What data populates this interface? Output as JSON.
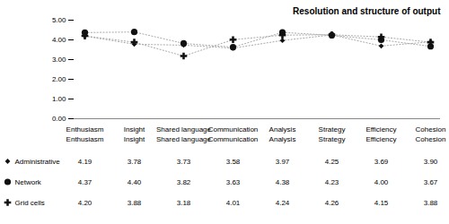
{
  "chart_data": {
    "type": "line",
    "title": "Resolution and structure of output",
    "categories": [
      "Enthusiasm",
      "Insight",
      "Shared language",
      "Communication",
      "Analysis",
      "Strategy",
      "Efficiency",
      "Cohesion"
    ],
    "series": [
      {
        "name": "Administrative",
        "color": "#111111",
        "marker": "diamond",
        "line_style": "dotted",
        "values": [
          4.19,
          3.78,
          3.73,
          3.58,
          3.97,
          4.25,
          3.69,
          3.9
        ],
        "value_labels": [
          "4.19",
          "3.78",
          "3.73",
          "3.58",
          "3.97",
          "4.25",
          "3.69",
          "3.90"
        ]
      },
      {
        "name": "Network",
        "color": "#111111",
        "marker": "circle",
        "line_style": "dotted",
        "values": [
          4.37,
          4.4,
          3.82,
          3.63,
          4.38,
          4.23,
          4.0,
          3.67
        ],
        "value_labels": [
          "4.37",
          "4.40",
          "3.82",
          "3.63",
          "4.38",
          "4.23",
          "4.00",
          "3.67"
        ]
      },
      {
        "name": "Grid cells",
        "color": "#111111",
        "marker": "plus",
        "line_style": "dotted",
        "values": [
          4.2,
          3.88,
          3.18,
          4.01,
          4.24,
          4.26,
          4.15,
          3.88
        ],
        "value_labels": [
          "4.20",
          "3.88",
          "3.18",
          "4.01",
          "4.24",
          "4.26",
          "4.15",
          "3.88"
        ]
      }
    ],
    "ylim": [
      0.0,
      5.0
    ],
    "yticks": [
      {
        "value": 0,
        "label": "0.00"
      },
      {
        "value": 1,
        "label": "1.00"
      },
      {
        "value": 2,
        "label": "2.00"
      },
      {
        "value": 3,
        "label": "3.00"
      },
      {
        "value": 4,
        "label": "4.00"
      },
      {
        "value": 5,
        "label": "5.00"
      }
    ],
    "grid": false,
    "legend": "bottom",
    "data_labels": true
  }
}
